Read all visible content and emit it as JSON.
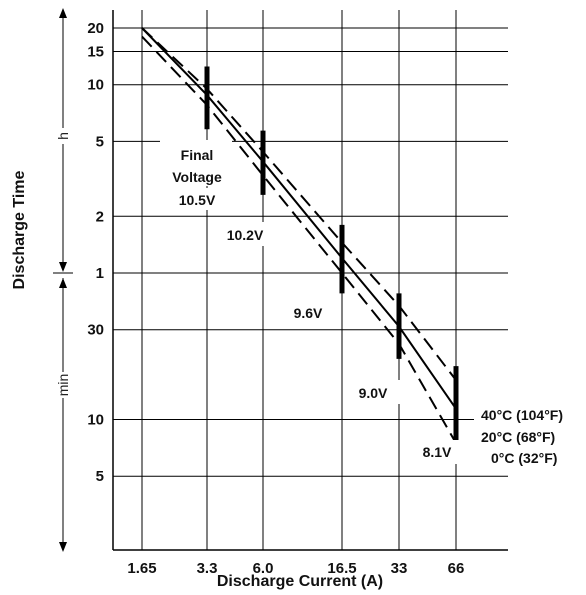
{
  "chart_data": {
    "type": "line",
    "xlabel": "Discharge Current (A)",
    "ylabel": "Discharge Time",
    "x_scale": "log",
    "y_scale": "log",
    "grid": true,
    "x_ticks": [
      "1.65",
      "3.3",
      "6.0",
      "16.5",
      "33",
      "66"
    ],
    "y_ticks": [
      {
        "label": "20",
        "unit": "h"
      },
      {
        "label": "15",
        "unit": "h"
      },
      {
        "label": "10",
        "unit": "h"
      },
      {
        "label": "5",
        "unit": "h"
      },
      {
        "label": "2",
        "unit": "h"
      },
      {
        "label": "1",
        "unit": "h"
      },
      {
        "label": "30",
        "unit": "min"
      },
      {
        "label": "10",
        "unit": "min"
      },
      {
        "label": "5",
        "unit": "min"
      }
    ],
    "y_units": {
      "hours": "h",
      "minutes": "min"
    },
    "series": [
      {
        "name": "40°C (104°F)",
        "style": "dashed",
        "points": [
          [
            1.65,
            20
          ],
          [
            3.3,
            9.5
          ],
          [
            6.0,
            4.4
          ],
          [
            16.5,
            1.45
          ],
          [
            33,
            0.67
          ],
          [
            66,
            0.27
          ]
        ]
      },
      {
        "name": "20°C (68°F)",
        "style": "solid",
        "points": [
          [
            1.65,
            20
          ],
          [
            3.3,
            8.8
          ],
          [
            6.0,
            3.9
          ],
          [
            16.5,
            1.2
          ],
          [
            33,
            0.52
          ],
          [
            66,
            0.19
          ]
        ]
      },
      {
        "name": "0°C (32°F)",
        "style": "dashed",
        "points": [
          [
            1.65,
            18
          ],
          [
            3.3,
            7.8
          ],
          [
            6.0,
            3.3
          ],
          [
            16.5,
            1.0
          ],
          [
            33,
            0.42
          ],
          [
            66,
            0.125
          ]
        ]
      }
    ],
    "final_voltage_markers": [
      {
        "x": 3.3,
        "y_low": 5.8,
        "y_high": 12.5,
        "label": "10.5V"
      },
      {
        "x": 6.0,
        "y_low": 2.6,
        "y_high": 5.7,
        "label": "10.2V"
      },
      {
        "x": 16.5,
        "y_low": 0.78,
        "y_high": 1.8,
        "label": "9.6V"
      },
      {
        "x": 33,
        "y_low": 0.35,
        "y_high": 0.78,
        "label": "9.0V"
      },
      {
        "x": 66,
        "y_low": 0.11,
        "y_high": 0.32,
        "label": "8.1V"
      }
    ],
    "annotation": {
      "line1": "Final",
      "line2": "Voltage"
    },
    "legend_position": "right"
  }
}
